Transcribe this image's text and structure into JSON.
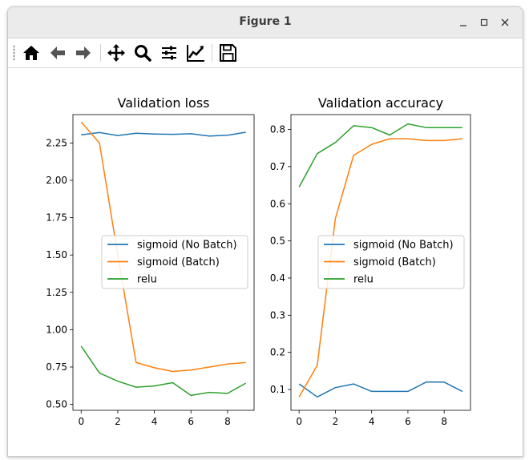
{
  "window": {
    "title": "Figure 1"
  },
  "toolbar": {
    "buttons": [
      {
        "name": "home-icon"
      },
      {
        "name": "back-arrow-icon"
      },
      {
        "name": "forward-arrow-icon"
      },
      {
        "name": "pan-icon"
      },
      {
        "name": "zoom-icon"
      },
      {
        "name": "subplots-config-icon"
      },
      {
        "name": "edit-axes-icon"
      },
      {
        "name": "save-icon"
      }
    ]
  },
  "colors": {
    "sigmoid_no_batch": "#1f77b4",
    "sigmoid_batch": "#ff7f0e",
    "relu": "#2ca02c"
  },
  "chart_data": [
    {
      "type": "line",
      "title": "Validation loss",
      "xlabel": "",
      "ylabel": "",
      "x": [
        0,
        1,
        2,
        3,
        4,
        5,
        6,
        7,
        8,
        9
      ],
      "xticks": [
        "0",
        "2",
        "4",
        "6",
        "8"
      ],
      "yticks": [
        "0.50",
        "0.75",
        "1.00",
        "1.25",
        "1.50",
        "1.75",
        "2.00",
        "2.25"
      ],
      "ylim": [
        0.46,
        2.44
      ],
      "xlim": [
        -0.45,
        9.45
      ],
      "legend": "center-right",
      "series": [
        {
          "name": "sigmoid (No Batch)",
          "color": "#1f77b4",
          "values": [
            2.305,
            2.32,
            2.3,
            2.315,
            2.31,
            2.308,
            2.312,
            2.296,
            2.302,
            2.322
          ]
        },
        {
          "name": "sigmoid (Batch)",
          "color": "#ff7f0e",
          "values": [
            2.39,
            2.25,
            1.5,
            0.78,
            0.745,
            0.72,
            0.73,
            0.75,
            0.77,
            0.78
          ]
        },
        {
          "name": "relu",
          "color": "#2ca02c",
          "values": [
            0.89,
            0.71,
            0.655,
            0.615,
            0.623,
            0.645,
            0.56,
            0.58,
            0.573,
            0.642
          ]
        }
      ]
    },
    {
      "type": "line",
      "title": "Validation accuracy",
      "xlabel": "",
      "ylabel": "",
      "x": [
        0,
        1,
        2,
        3,
        4,
        5,
        6,
        7,
        8,
        9
      ],
      "xticks": [
        "0",
        "2",
        "4",
        "6",
        "8"
      ],
      "yticks": [
        "0.1",
        "0.2",
        "0.3",
        "0.4",
        "0.5",
        "0.6",
        "0.7",
        "0.8"
      ],
      "ylim": [
        0.044,
        0.84
      ],
      "xlim": [
        -0.45,
        9.45
      ],
      "legend": "center-right",
      "series": [
        {
          "name": "sigmoid (No Batch)",
          "color": "#1f77b4",
          "values": [
            0.115,
            0.08,
            0.105,
            0.115,
            0.095,
            0.095,
            0.095,
            0.12,
            0.12,
            0.095
          ]
        },
        {
          "name": "sigmoid (Batch)",
          "color": "#ff7f0e",
          "values": [
            0.08,
            0.165,
            0.56,
            0.73,
            0.76,
            0.775,
            0.775,
            0.77,
            0.77,
            0.775
          ]
        },
        {
          "name": "relu",
          "color": "#2ca02c",
          "values": [
            0.645,
            0.735,
            0.765,
            0.81,
            0.805,
            0.785,
            0.815,
            0.805,
            0.805,
            0.805
          ]
        }
      ]
    }
  ]
}
